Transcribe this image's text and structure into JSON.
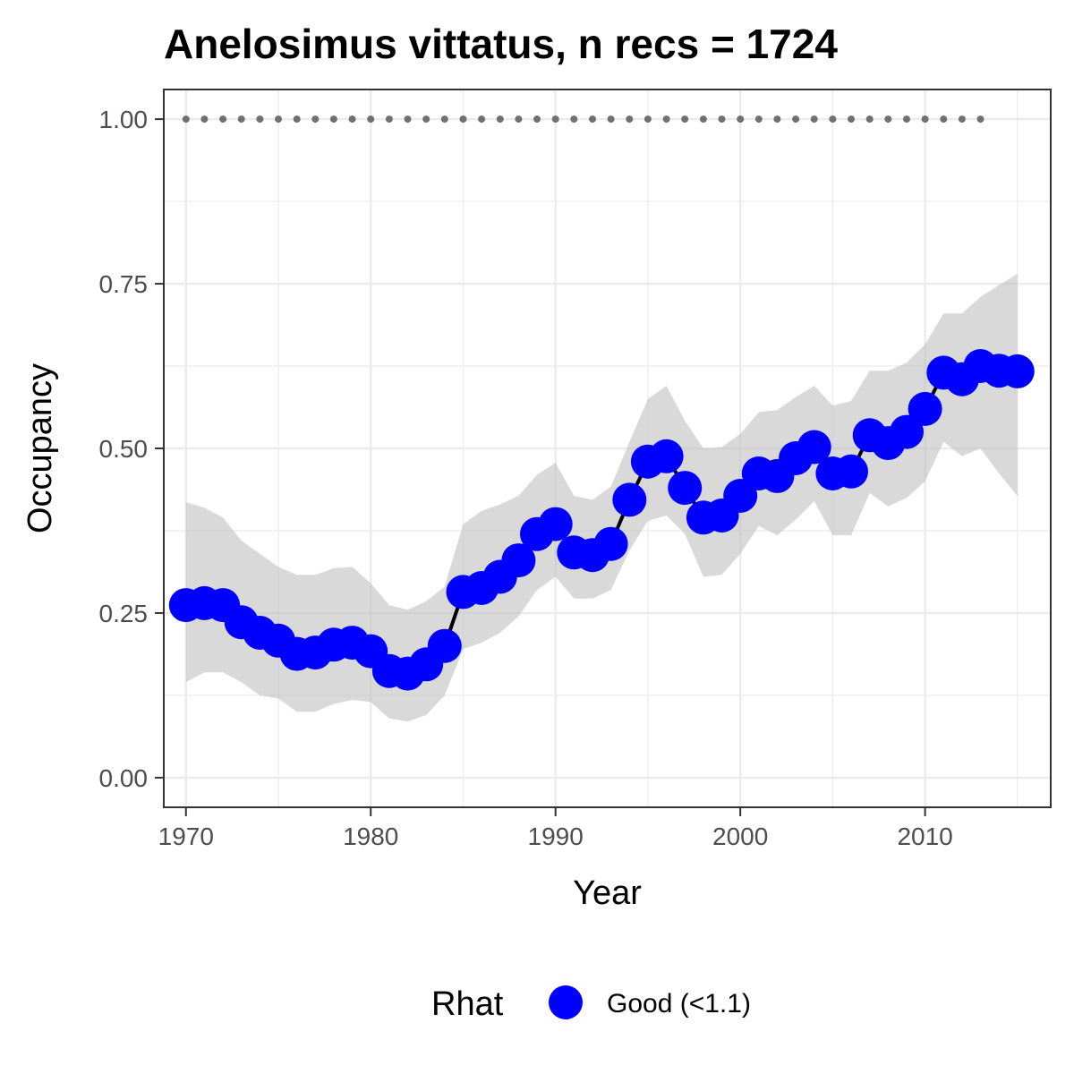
{
  "chart_data": {
    "type": "line",
    "title": "Anelosimus vittatus, n recs = 1724",
    "xlabel": "Year",
    "ylabel": "Occupancy",
    "xlim": [
      1968.8,
      2016.8
    ],
    "ylim": [
      -0.045,
      1.045
    ],
    "x_ticks": [
      1970,
      1980,
      1990,
      2000,
      2010
    ],
    "x_tick_labels": [
      "1970",
      "1980",
      "1990",
      "2000",
      "2010"
    ],
    "y_ticks": [
      0,
      0.25,
      0.5,
      0.75,
      1.0
    ],
    "y_tick_labels": [
      "0.00",
      "0.25",
      "0.50",
      "0.75",
      "1.00"
    ],
    "grid": true,
    "series": [
      {
        "name": "Occupancy",
        "color": "#0000ff",
        "x": [
          1970,
          1971,
          1972,
          1973,
          1974,
          1975,
          1976,
          1977,
          1978,
          1979,
          1980,
          1981,
          1982,
          1983,
          1984,
          1985,
          1986,
          1987,
          1988,
          1989,
          1990,
          1991,
          1992,
          1993,
          1994,
          1995,
          1996,
          1997,
          1998,
          1999,
          2000,
          2001,
          2002,
          2003,
          2004,
          2005,
          2006,
          2007,
          2008,
          2009,
          2010,
          2011,
          2012,
          2013,
          2014,
          2015
        ],
        "y": [
          0.262,
          0.265,
          0.262,
          0.236,
          0.22,
          0.208,
          0.188,
          0.19,
          0.202,
          0.205,
          0.192,
          0.162,
          0.158,
          0.172,
          0.2,
          0.282,
          0.288,
          0.305,
          0.33,
          0.37,
          0.385,
          0.342,
          0.338,
          0.355,
          0.422,
          0.48,
          0.488,
          0.44,
          0.395,
          0.398,
          0.428,
          0.462,
          0.458,
          0.485,
          0.502,
          0.462,
          0.465,
          0.52,
          0.508,
          0.525,
          0.56,
          0.615,
          0.605,
          0.625,
          0.618,
          0.617
        ],
        "lower": [
          0.145,
          0.16,
          0.16,
          0.145,
          0.125,
          0.12,
          0.1,
          0.1,
          0.112,
          0.118,
          0.115,
          0.09,
          0.085,
          0.095,
          0.125,
          0.195,
          0.205,
          0.22,
          0.245,
          0.285,
          0.305,
          0.272,
          0.272,
          0.285,
          0.345,
          0.39,
          0.398,
          0.37,
          0.305,
          0.308,
          0.34,
          0.382,
          0.368,
          0.392,
          0.42,
          0.368,
          0.368,
          0.432,
          0.412,
          0.425,
          0.45,
          0.51,
          0.488,
          0.5,
          0.462,
          0.428
        ],
        "upper": [
          0.418,
          0.41,
          0.395,
          0.36,
          0.34,
          0.32,
          0.308,
          0.308,
          0.318,
          0.32,
          0.295,
          0.262,
          0.255,
          0.268,
          0.29,
          0.385,
          0.405,
          0.415,
          0.428,
          0.46,
          0.478,
          0.428,
          0.422,
          0.442,
          0.51,
          0.575,
          0.595,
          0.542,
          0.5,
          0.502,
          0.522,
          0.555,
          0.558,
          0.578,
          0.595,
          0.565,
          0.572,
          0.618,
          0.618,
          0.63,
          0.658,
          0.705,
          0.705,
          0.73,
          0.748,
          0.765
        ]
      }
    ],
    "reference_points": {
      "color": "#707070",
      "y": 1.0,
      "x_start": 1970,
      "x_end": 2013,
      "step": 1
    },
    "legend": {
      "title": "Rhat",
      "entries": [
        {
          "label": "Good (<1.1)",
          "color": "#0000ff"
        }
      ],
      "position": "bottom"
    }
  }
}
